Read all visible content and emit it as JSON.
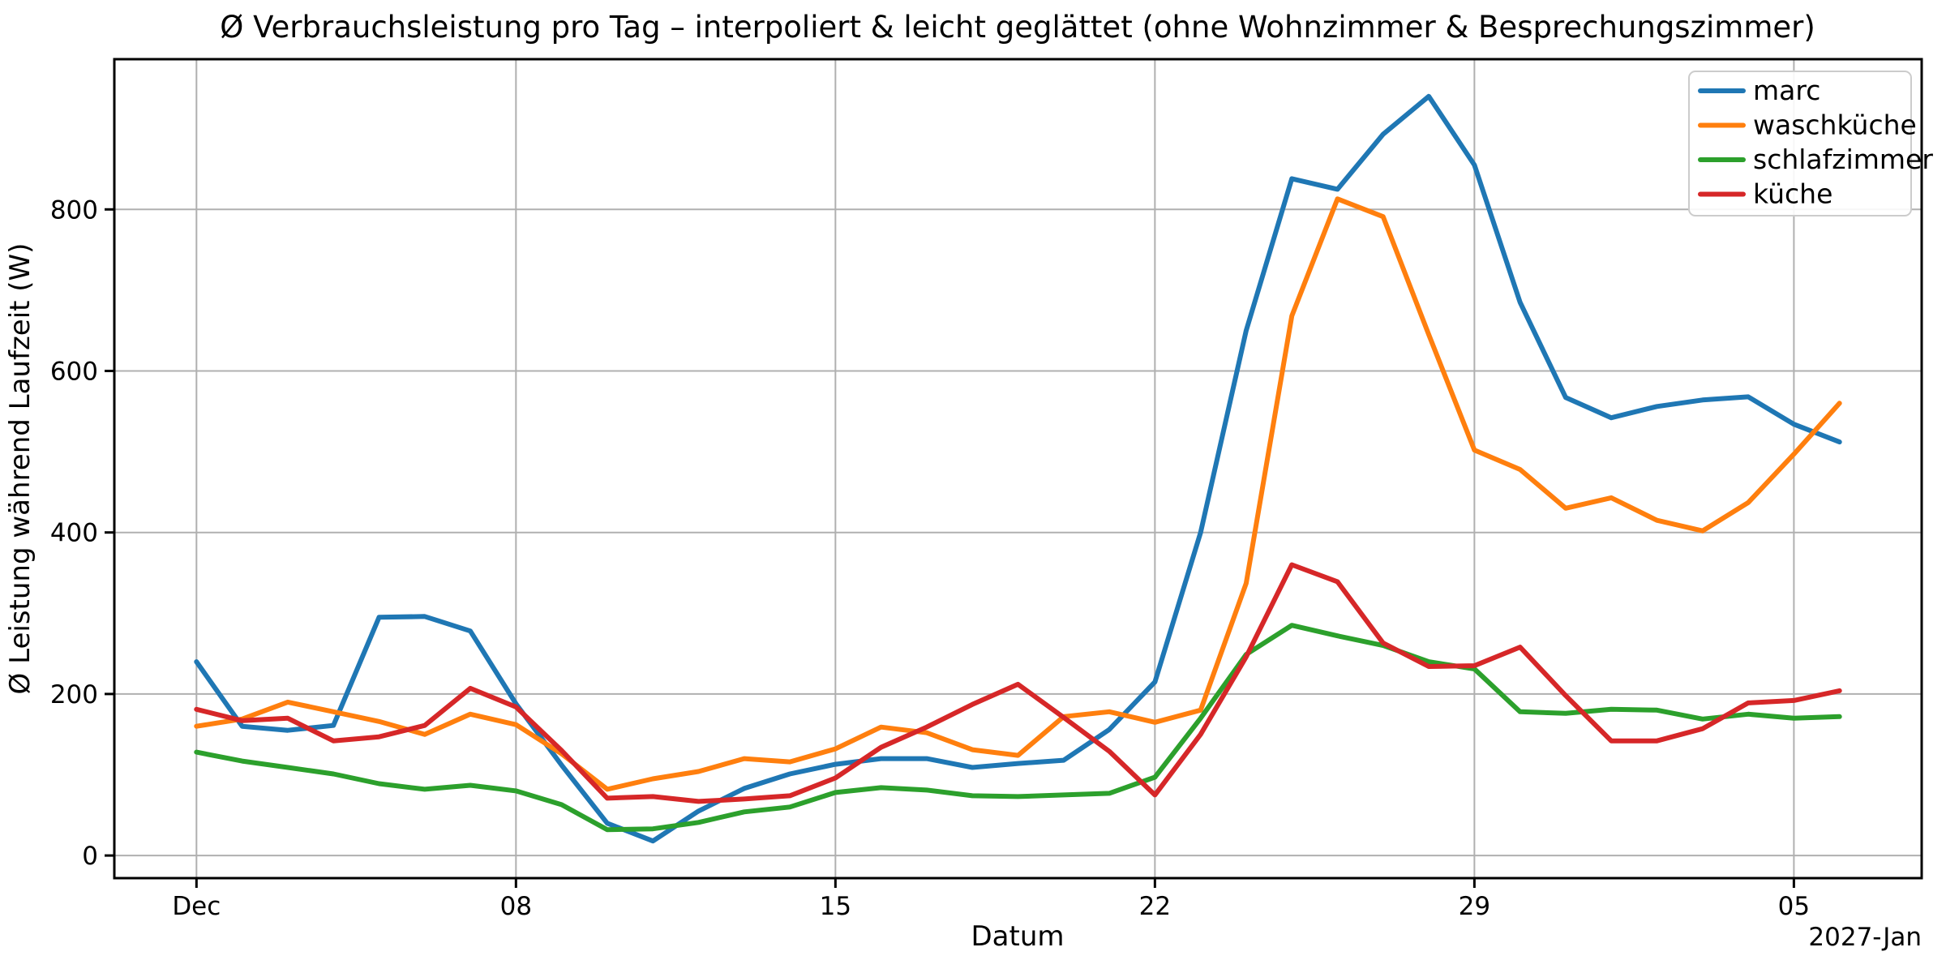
{
  "chart_data": {
    "type": "line",
    "title": "Ø Verbrauchsleistung pro Tag – interpoliert & leicht geglättet (ohne Wohnzimmer & Besprechungszimmer)",
    "xlabel": "Datum",
    "ylabel": "Ø Leistung während Laufzeit (W)",
    "x_axis_secondary_label": "2027-Jan",
    "grid": true,
    "legend_position": "upper right",
    "x_description": "daily values, day index 0 = first x gridline (Dec), one point per day through index 36",
    "xlim_days": [
      -1.8,
      37.8
    ],
    "ylim": [
      -28,
      986
    ],
    "y_ticks": [
      0,
      200,
      400,
      600,
      800
    ],
    "x_ticks": [
      {
        "pos": 0,
        "label": "Dec"
      },
      {
        "pos": 7,
        "label": "08"
      },
      {
        "pos": 14,
        "label": "15"
      },
      {
        "pos": 21,
        "label": "22"
      },
      {
        "pos": 28,
        "label": "29"
      },
      {
        "pos": 35,
        "label": "05"
      }
    ],
    "series": [
      {
        "name": "marc",
        "color": "#1f77b4",
        "values": [
          240,
          160,
          155,
          161,
          295,
          296,
          278,
          188,
          112,
          40,
          18,
          55,
          83,
          101,
          113,
          120,
          120,
          109,
          114,
          118,
          156,
          215,
          400,
          650,
          838,
          825,
          893,
          940,
          855,
          685,
          567,
          542,
          556,
          564,
          568,
          534,
          512
        ]
      },
      {
        "name": "waschküche",
        "color": "#ff7f0e",
        "values": [
          160,
          169,
          190,
          178,
          166,
          150,
          175,
          162,
          126,
          82,
          95,
          104,
          120,
          116,
          132,
          159,
          152,
          131,
          124,
          172,
          178,
          165,
          180,
          337,
          668,
          813,
          791,
          645,
          502,
          478,
          430,
          443,
          415,
          402,
          437,
          497,
          560
        ]
      },
      {
        "name": "schlafzimmer",
        "color": "#2ca02c",
        "values": [
          128,
          117,
          109,
          101,
          89,
          82,
          87,
          80,
          63,
          32,
          33,
          41,
          54,
          60,
          78,
          84,
          81,
          74,
          73,
          75,
          77,
          97,
          170,
          249,
          285,
          272,
          260,
          240,
          231,
          178,
          176,
          181,
          180,
          169,
          175,
          170,
          172
        ]
      },
      {
        "name": "küche",
        "color": "#d62728",
        "values": [
          181,
          167,
          170,
          142,
          147,
          161,
          207,
          184,
          130,
          71,
          73,
          67,
          70,
          74,
          96,
          134,
          159,
          187,
          212,
          171,
          129,
          75,
          150,
          246,
          360,
          339,
          263,
          234,
          235,
          258,
          198,
          142,
          142,
          157,
          189,
          192,
          204
        ]
      }
    ]
  },
  "style": {
    "grid_color": "#b0b0b0",
    "spine_color": "#000000",
    "legend_border_color": "#cccccc",
    "background": "#ffffff"
  }
}
